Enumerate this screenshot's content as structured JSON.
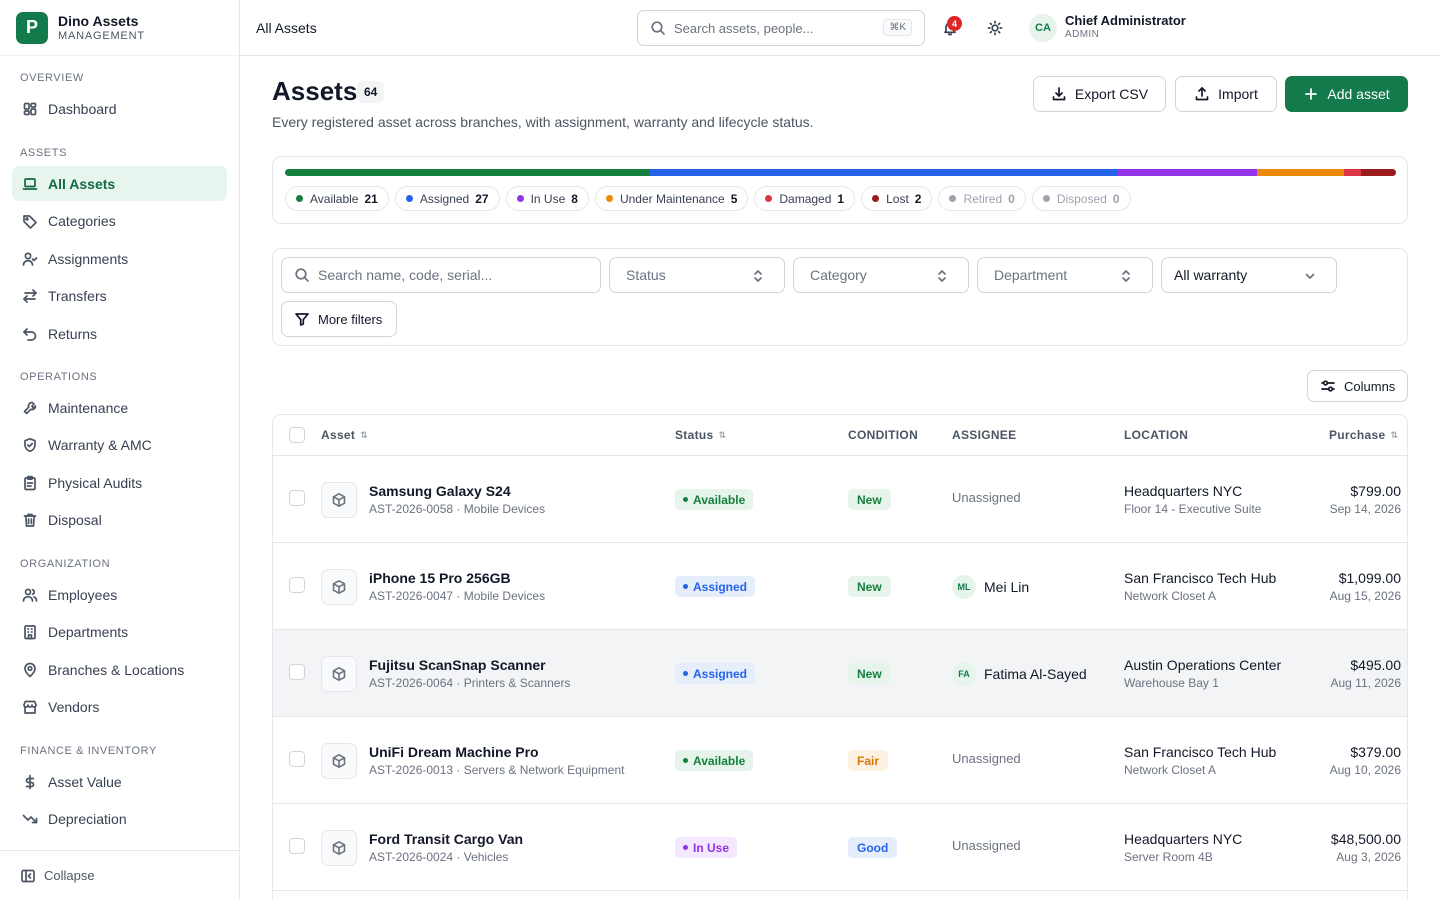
{
  "brand": {
    "logo_letter": "P",
    "name": "Dino Assets",
    "subtitle": "MANAGEMENT"
  },
  "sidebar": {
    "sections": [
      {
        "label": "OVERVIEW",
        "items": [
          {
            "label": "Dashboard",
            "icon": "dashboard-icon"
          }
        ]
      },
      {
        "label": "ASSETS",
        "items": [
          {
            "label": "All Assets",
            "icon": "laptop-icon",
            "active": true
          },
          {
            "label": "Categories",
            "icon": "tag-icon"
          },
          {
            "label": "Assignments",
            "icon": "user-check-icon"
          },
          {
            "label": "Transfers",
            "icon": "transfer-icon"
          },
          {
            "label": "Returns",
            "icon": "undo-icon"
          }
        ]
      },
      {
        "label": "OPERATIONS",
        "items": [
          {
            "label": "Maintenance",
            "icon": "wrench-icon"
          },
          {
            "label": "Warranty & AMC",
            "icon": "shield-icon"
          },
          {
            "label": "Physical Audits",
            "icon": "clipboard-icon"
          },
          {
            "label": "Disposal",
            "icon": "trash-icon"
          }
        ]
      },
      {
        "label": "ORGANIZATION",
        "items": [
          {
            "label": "Employees",
            "icon": "users-icon"
          },
          {
            "label": "Departments",
            "icon": "building-icon"
          },
          {
            "label": "Branches & Locations",
            "icon": "map-pin-icon"
          },
          {
            "label": "Vendors",
            "icon": "store-icon"
          }
        ]
      },
      {
        "label": "FINANCE & INVENTORY",
        "items": [
          {
            "label": "Asset Value",
            "icon": "dollar-icon"
          },
          {
            "label": "Depreciation",
            "icon": "trending-down-icon"
          }
        ]
      }
    ],
    "collapse_label": "Collapse"
  },
  "topbar": {
    "title": "All Assets",
    "search_placeholder": "Search assets, people...",
    "search_shortcut": "⌘K",
    "notification_count": "4",
    "user_initials": "CA",
    "user_name": "Chief Administrator",
    "user_role": "ADMIN"
  },
  "header": {
    "title": "Assets",
    "count": "64",
    "subtitle": "Every registered asset across branches, with assignment, warranty and lifecycle status.",
    "export_label": "Export CSV",
    "import_label": "Import",
    "add_label": "Add asset"
  },
  "status_summary": {
    "total": 64,
    "items": [
      {
        "label": "Available",
        "count": 21,
        "color": "#15803d"
      },
      {
        "label": "Assigned",
        "count": 27,
        "color": "#2563eb"
      },
      {
        "label": "In Use",
        "count": 8,
        "color": "#9333ea"
      },
      {
        "label": "Under Maintenance",
        "count": 5,
        "color": "#ea8a0c"
      },
      {
        "label": "Damaged",
        "count": 1,
        "color": "#dc3545"
      },
      {
        "label": "Lost",
        "count": 2,
        "color": "#991b1b"
      },
      {
        "label": "Retired",
        "count": 0,
        "color": "#9ca3af"
      },
      {
        "label": "Disposed",
        "count": 0,
        "color": "#9ca3af"
      }
    ]
  },
  "filters": {
    "search_placeholder": "Search name, code, serial...",
    "status": "Status",
    "category": "Category",
    "department": "Department",
    "warranty": "All warranty",
    "more_filters": "More filters"
  },
  "columns_button": "Columns",
  "table": {
    "headers": {
      "asset": "Asset",
      "status": "Status",
      "condition": "CONDITION",
      "assignee": "ASSIGNEE",
      "location": "LOCATION",
      "purchase": "Purchase"
    },
    "rows": [
      {
        "name": "Samsung Galaxy S24",
        "code": "AST-2026-0058 · Mobile Devices",
        "status": "Available",
        "condition": "New",
        "assignee": "Unassigned",
        "assignee_initials": "",
        "location": "Headquarters NYC",
        "location_sub": "Floor 14 - Executive Suite",
        "price": "$799.00",
        "date": "Sep 14, 2026"
      },
      {
        "name": "iPhone 15 Pro 256GB",
        "code": "AST-2026-0047 · Mobile Devices",
        "status": "Assigned",
        "condition": "New",
        "assignee": "Mei Lin",
        "assignee_initials": "ML",
        "location": "San Francisco Tech Hub",
        "location_sub": "Network Closet A",
        "price": "$1,099.00",
        "date": "Aug 15, 2026"
      },
      {
        "name": "Fujitsu ScanSnap Scanner",
        "code": "AST-2026-0064 · Printers & Scanners",
        "status": "Assigned",
        "condition": "New",
        "assignee": "Fatima Al-Sayed",
        "assignee_initials": "FA",
        "location": "Austin Operations Center",
        "location_sub": "Warehouse Bay 1",
        "price": "$495.00",
        "date": "Aug 11, 2026"
      },
      {
        "name": "UniFi Dream Machine Pro",
        "code": "AST-2026-0013 · Servers & Network Equipment",
        "status": "Available",
        "condition": "Fair",
        "assignee": "Unassigned",
        "assignee_initials": "",
        "location": "San Francisco Tech Hub",
        "location_sub": "Network Closet A",
        "price": "$379.00",
        "date": "Aug 10, 2026"
      },
      {
        "name": "Ford Transit Cargo Van",
        "code": "AST-2026-0024 · Vehicles",
        "status": "In Use",
        "condition": "Good",
        "assignee": "Unassigned",
        "assignee_initials": "",
        "location": "Headquarters NYC",
        "location_sub": "Server Room 4B",
        "price": "$48,500.00",
        "date": "Aug 3, 2026"
      }
    ]
  },
  "status_styles": {
    "Available": {
      "bg": "#e6f4ec",
      "fg": "#15803d"
    },
    "Assigned": {
      "bg": "#e6eefc",
      "fg": "#2563eb"
    },
    "In Use": {
      "bg": "#f3e8fd",
      "fg": "#9333ea"
    }
  },
  "condition_styles": {
    "New": {
      "bg": "#e6f4ec",
      "fg": "#15803d"
    },
    "Fair": {
      "bg": "#fdf1e2",
      "fg": "#d97706"
    },
    "Good": {
      "bg": "#e6eefc",
      "fg": "#2563eb"
    }
  }
}
